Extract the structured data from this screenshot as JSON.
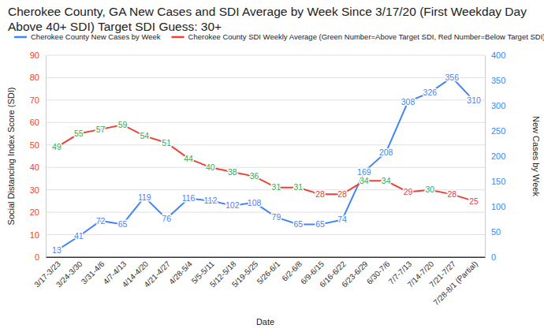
{
  "chart_data": {
    "type": "line",
    "title": "Cherokee County, GA New Cases and SDI Average by Week Since 3/17/20 (First Weekday Day Above 40+ SDI) Target SDI Guess: 30+",
    "x_label": "Date",
    "y_label": "Social Distancing Index Score (SDI)",
    "y2_label": "New Cases by Week",
    "categories": [
      "3/17-3/23",
      "3/24-3/30",
      "3/31-4/6",
      "4/7-4/13",
      "4/14-4/20",
      "4/21-4/27",
      "4/28-5/4",
      "5/5-5/11",
      "5/12-5/18",
      "5/19-5/25",
      "5/26-6/1",
      "6/2-6/8",
      "6/9-6/15",
      "6/16-6/22",
      "6/23-6/29",
      "6/30-7/6",
      "7/7-7/13",
      "7/14-7/20",
      "7/21-7/27",
      "7/28-8/1 (Partial)"
    ],
    "series": [
      {
        "name": "Cherokee County New Cases by Week",
        "color": "#4285f4",
        "axis": "y2",
        "type": "line",
        "values": [
          13,
          41,
          72,
          65,
          119,
          76,
          116,
          112,
          102,
          108,
          79,
          65,
          65,
          74,
          169,
          208,
          308,
          326,
          356,
          310
        ]
      },
      {
        "name": "Cherokee County SDI Weekly Average (Green Number=Above Target SDI, Red Number=Below Target SDI)",
        "color": "#ea4335",
        "type": "line",
        "values": [
          49,
          55,
          57,
          59,
          54,
          51,
          44,
          40,
          38,
          36,
          31,
          31,
          28,
          28,
          34,
          34,
          29,
          30,
          28,
          25
        ],
        "colors": [
          "#34a853",
          "#34a853",
          "#34a853",
          "#34a853",
          "#34a853",
          "#34a853",
          "#34a853",
          "#34a853",
          "#34a853",
          "#34a853",
          "#34a853",
          "#34a853",
          "#ea4335",
          "#ea4335",
          "#34a853",
          "#34a853",
          "#ea4335",
          "#34a853",
          "#ea4335",
          "#ea4335"
        ]
      }
    ],
    "ylim": [
      0,
      90
    ],
    "yticks": [
      0,
      10,
      20,
      30,
      40,
      50,
      60,
      70,
      80,
      90
    ],
    "y2lim": [
      0,
      400
    ],
    "y2ticks": [
      0,
      50,
      100,
      150,
      200,
      250,
      300,
      350,
      400
    ],
    "grid": true,
    "legend": "top",
    "data_labels": true
  }
}
